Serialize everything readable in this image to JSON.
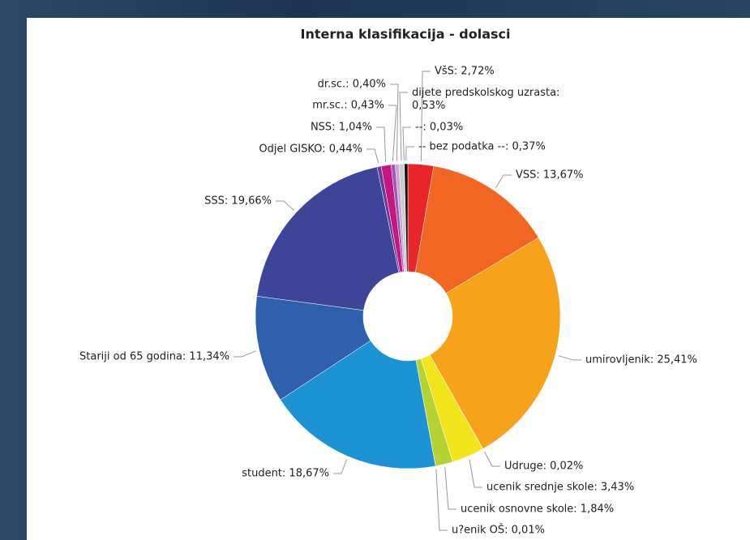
{
  "chart_data": {
    "type": "donut",
    "title": "Interna klasifikacija - dolasci",
    "values": [
      2.72,
      13.67,
      25.41,
      0.02,
      3.43,
      1.84,
      0.01,
      18.67,
      11.34,
      19.66,
      0.44,
      1.04,
      0.43,
      0.4,
      0.53,
      0.03,
      0.37
    ],
    "value_labels": [
      "VšS: 2,72%",
      "VSS: 13,67%",
      "umirovljenik: 25,41%",
      "Udruge: 0,02%",
      "ucenik srednje skole: 3,43%",
      "ucenik osnovne skole: 1,84%",
      "u?enik OŠ: 0,01%",
      "student: 18,67%",
      "Stariji od 65 godina: 11,34%",
      "SSS: 19,66%",
      "Odjel GISKO: 0,44%",
      "NSS: 1,04%",
      "mr.sc.: 0,43%",
      "dr.sc.: 0,40%",
      "dijete predskolskog uzrasta:\n0,53%",
      "--: 0,03%",
      "-- bez podatka --: 0,37%"
    ],
    "colors": [
      "#e8262a",
      "#f26522",
      "#f7a21b",
      "#f5e600",
      "#f2e51c",
      "#b5d334",
      "#7cc242",
      "#1e93d4",
      "#2f5fad",
      "#3e4599",
      "#6a3d9a",
      "#c4177f",
      "#9b59b6",
      "#d1a3d1",
      "#cccccc",
      "#888888",
      "#111111"
    ]
  }
}
